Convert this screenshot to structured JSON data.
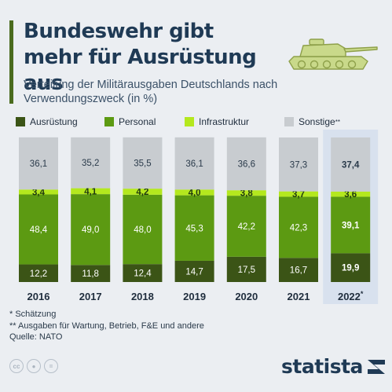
{
  "header": {
    "title": "Bundeswehr gibt mehr für Ausrüstung aus",
    "subtitle": "Verteilung der Militärausgaben Deutschlands nach Verwendungszweck (in %)"
  },
  "colors": {
    "accent": "#4a6b1e",
    "ausruestung": "#3b5416",
    "personal": "#5c9a12",
    "infrastruktur": "#b4e81e",
    "sonstige": "#c8ccd0",
    "highlight": "#d8e1ee"
  },
  "legend": {
    "items": [
      {
        "label": "Ausrüstung",
        "color": "#3b5416"
      },
      {
        "label": "Personal",
        "color": "#5c9a12"
      },
      {
        "label": "Infrastruktur",
        "color": "#b4e81e"
      },
      {
        "label": "Sonstige",
        "sup": "**",
        "color": "#c8ccd0"
      }
    ]
  },
  "chart_data": {
    "type": "bar",
    "stacked": true,
    "categories": [
      "2016",
      "2017",
      "2018",
      "2019",
      "2020",
      "2021",
      "2022*"
    ],
    "highlighted_category": "2022*",
    "series": [
      {
        "name": "Ausrüstung",
        "values": [
          12.2,
          11.8,
          12.4,
          14.7,
          17.5,
          16.7,
          19.9
        ]
      },
      {
        "name": "Personal",
        "values": [
          48.4,
          49.0,
          48.0,
          45.3,
          42.2,
          42.3,
          39.1
        ]
      },
      {
        "name": "Infrastruktur",
        "values": [
          3.4,
          4.1,
          4.2,
          4.0,
          3.8,
          3.7,
          3.6
        ]
      },
      {
        "name": "Sonstige**",
        "values": [
          36.1,
          35.2,
          35.5,
          36.1,
          36.6,
          37.3,
          37.4
        ]
      }
    ],
    "value_labels": [
      [
        "12,2",
        "11,8",
        "12,4",
        "14,7",
        "17,5",
        "16,7",
        "19,9"
      ],
      [
        "48,4",
        "49,0",
        "48,0",
        "45,3",
        "42,2",
        "42,3",
        "39,1"
      ],
      [
        "3,4",
        "4,1",
        "4,2",
        "4,0",
        "3,8",
        "3,7",
        "3,6"
      ],
      [
        "36,1",
        "35,2",
        "35,5",
        "36,1",
        "36,6",
        "37,3",
        "37,4"
      ]
    ],
    "ylim": [
      0,
      100
    ],
    "grid": false
  },
  "notes": {
    "line1": "*  Schätzung",
    "line2": "** Ausgaben für Wartung, Betrieb, F&E und andere",
    "source": "Quelle: NATO"
  },
  "icons": [
    "cc-icon",
    "person-icon",
    "equals-icon",
    "tank-icon",
    "statista-logo-icon"
  ],
  "brand": {
    "name": "statista"
  }
}
